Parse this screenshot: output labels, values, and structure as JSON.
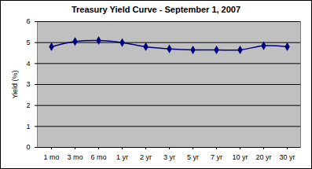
{
  "chart_data": {
    "type": "line",
    "title": "Treasury Yield Curve - September 1, 2007",
    "y_label": "Yield (%)",
    "categories": [
      "1 mo",
      "3 mo",
      "6 mo",
      "1 yr",
      "2 yr",
      "3 yr",
      "5 yr",
      "7 yr",
      "10 yr",
      "20 yr",
      "30 yr"
    ],
    "values": [
      4.8,
      5.05,
      5.1,
      5.0,
      4.8,
      4.7,
      4.65,
      4.65,
      4.65,
      4.85,
      4.8
    ],
    "color": "#000080",
    "marker": "diamond",
    "line_style": "smooth",
    "ylim": [
      0,
      6
    ],
    "yticks": [
      0,
      1,
      2,
      3,
      4,
      5,
      6
    ],
    "grid": true
  }
}
